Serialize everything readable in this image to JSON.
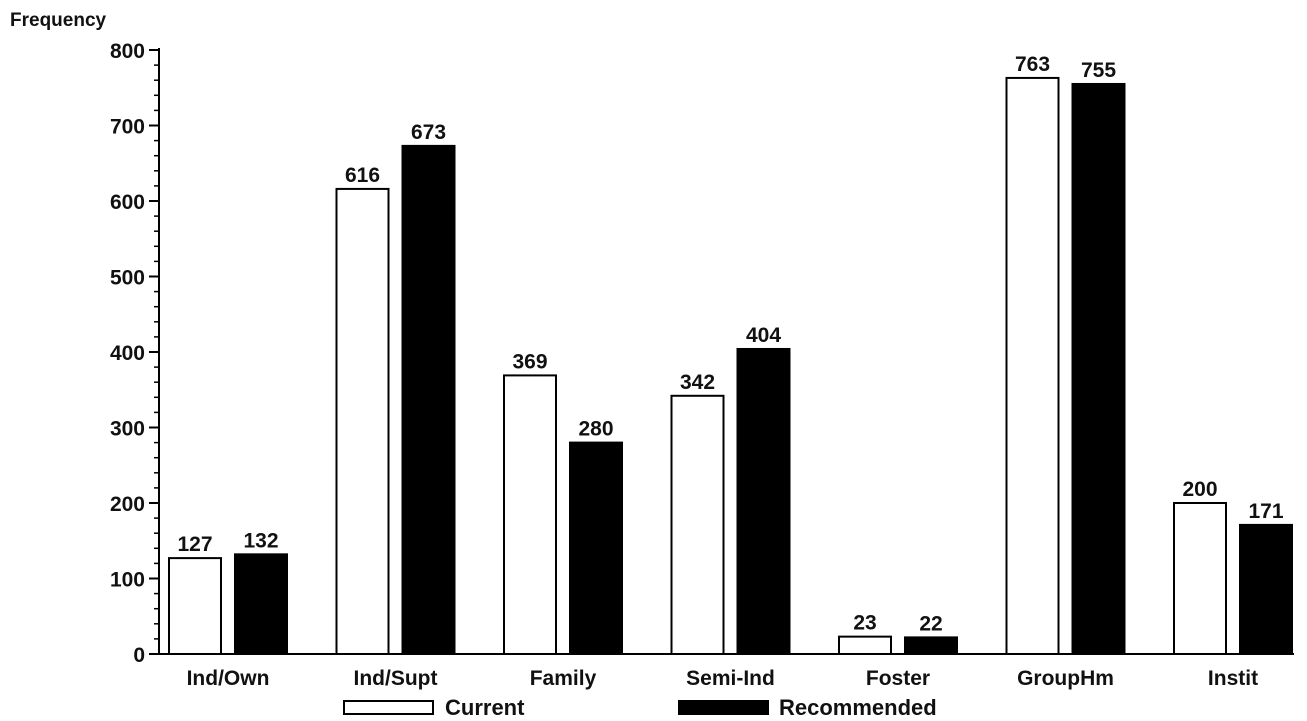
{
  "chart_data": {
    "type": "bar",
    "ylabel": "Frequency",
    "xlabel": "",
    "title": "",
    "ylim": [
      0,
      800
    ],
    "yticks": [
      "0",
      "100",
      "200",
      "300",
      "400",
      "500",
      "600",
      "700",
      "800"
    ],
    "categories": [
      "Ind/Own",
      "Ind/Supt",
      "Family",
      "Semi-Ind",
      "Foster",
      "GroupHm",
      "Instit"
    ],
    "series": [
      {
        "name": "Current",
        "values": [
          127,
          616,
          369,
          342,
          23,
          763,
          200
        ],
        "fill": "#ffffff",
        "stroke": "#000000"
      },
      {
        "name": "Recommended",
        "values": [
          132,
          673,
          280,
          404,
          22,
          755,
          171
        ],
        "fill": "#000000",
        "stroke": "#000000"
      }
    ],
    "data_labels": [
      [
        "127",
        "616",
        "369",
        "342",
        "23",
        "763",
        "200"
      ],
      [
        "132",
        "673",
        "280",
        "404",
        "22",
        "755",
        "171"
      ]
    ],
    "legend_position": "bottom",
    "grid": false
  }
}
